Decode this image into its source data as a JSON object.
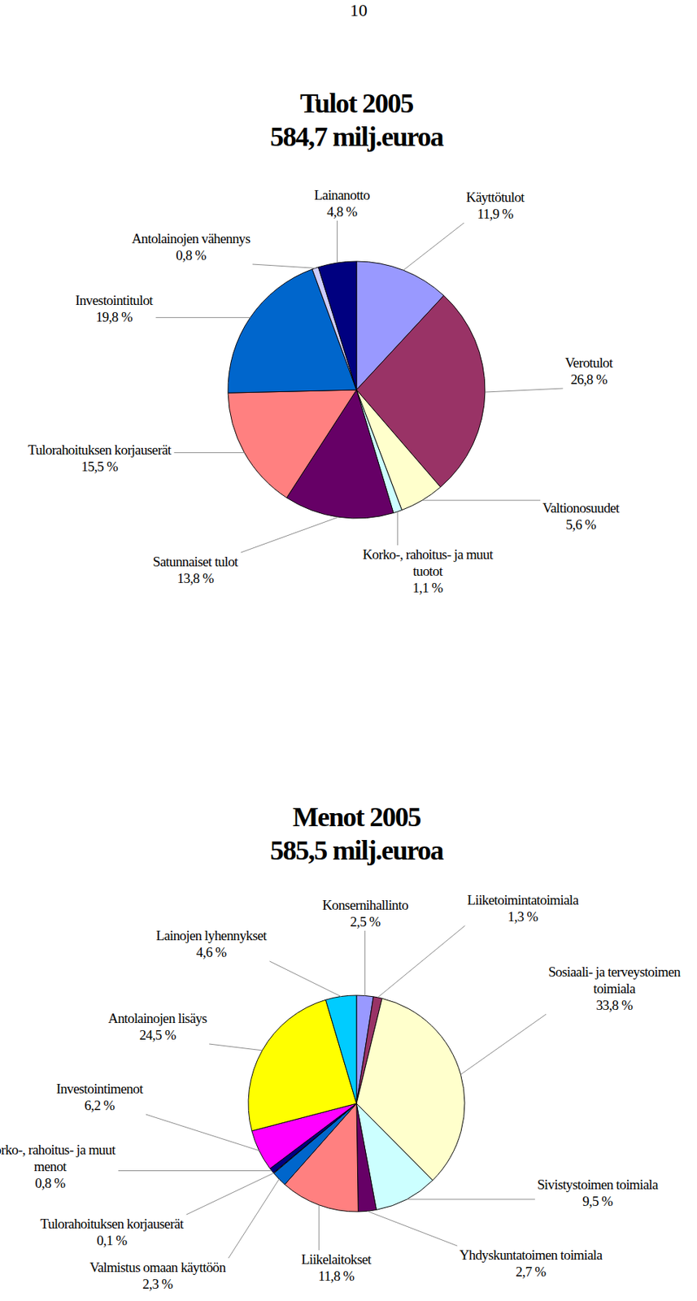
{
  "page_number": "10",
  "chart_data": [
    {
      "type": "pie",
      "title": "Tulot 2005",
      "subtitle": "584,7 milj.euroa",
      "categories": [
        "Käyttötulot",
        "Verotulot",
        "Valtionosuudet",
        "Korko-, rahoitus- ja muut tuotot",
        "Satunnaiset tulot",
        "Tulorahoituksen korjauserät",
        "Investointitulot",
        "Antolainojen vähennys",
        "Lainanotto"
      ],
      "values": [
        11.9,
        26.8,
        5.6,
        1.1,
        13.8,
        15.5,
        19.8,
        0.8,
        4.8
      ],
      "value_labels": [
        "11,9 %",
        "26,8 %",
        "5,6 %",
        "1,1 %",
        "13,8 %",
        "15,5 %",
        "19,8 %",
        "0,8 %",
        "4,8 %"
      ],
      "colors": [
        "#9999ff",
        "#993366",
        "#ffffcc",
        "#ccffff",
        "#660066",
        "#ff8080",
        "#0066cc",
        "#ccccff",
        "#000080"
      ],
      "data_labels": true
    },
    {
      "type": "pie",
      "title": "Menot 2005",
      "subtitle": "585,5 milj.euroa",
      "categories": [
        "Konsernihallinto",
        "Liiketoimintatoimiala",
        "Sosiaali- ja terveystoimen toimiala",
        "Sivistystoimen toimiala",
        "Yhdyskuntatoimen toimiala",
        "Liikelaitokset",
        "Valmistus omaan käyttöön",
        "Tulorahoituksen korjauserät",
        "Korko-, rahoitus- ja muut menot",
        "Investointimenot",
        "Antolainojen lisäys",
        "Lainojen lyhennykset"
      ],
      "values": [
        2.5,
        1.3,
        33.8,
        9.5,
        2.7,
        11.8,
        2.3,
        0.1,
        0.8,
        6.2,
        24.5,
        4.6
      ],
      "value_labels": [
        "2,5 %",
        "1,3 %",
        "33,8 %",
        "9,5 %",
        "2,7 %",
        "11,8 %",
        "2,3 %",
        "0,1 %",
        "0,8 %",
        "6,2 %",
        "24,5 %",
        "4,6 %"
      ],
      "colors": [
        "#9999ff",
        "#993366",
        "#ffffcc",
        "#ccffff",
        "#660066",
        "#ff8080",
        "#0066cc",
        "#ccccff",
        "#000080",
        "#ff00ff",
        "#ffff00",
        "#00ccff"
      ],
      "data_labels": true
    }
  ]
}
